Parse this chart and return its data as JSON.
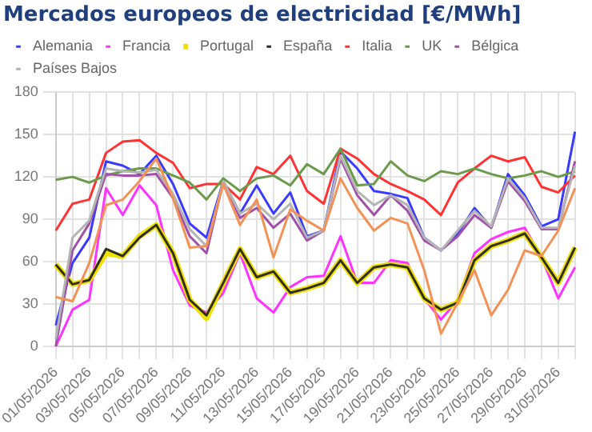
{
  "chart_data": {
    "type": "line",
    "title": "Mercados europeos de electricidad [€/MWh]",
    "categories": [
      "01/05/2026",
      null,
      "03/05/2026",
      null,
      "05/05/2026",
      null,
      "07/05/2026",
      null,
      "09/05/2026",
      null,
      "11/05/2026",
      null,
      "13/05/2026",
      null,
      "15/05/2026",
      null,
      "17/05/2026",
      null,
      "19/05/2026",
      null,
      "21/05/2026",
      null,
      "23/05/2026",
      null,
      "25/05/2026",
      null,
      "27/05/2026",
      null,
      "29/05/2026",
      null,
      "31/05/2026",
      null
    ],
    "series": [
      {
        "name": "Alemania",
        "color": "#3a3aff",
        "values": [
          15,
          59,
          77,
          131,
          128,
          122,
          135,
          115,
          87,
          77,
          117,
          94,
          114,
          94,
          109,
          78,
          82,
          138,
          126,
          110,
          108,
          105,
          77,
          68,
          80,
          98,
          84,
          122,
          107,
          85,
          90,
          152
        ]
      },
      {
        "name": "Francia",
        "color": "#ff33ff",
        "values": [
          0,
          26,
          33,
          112,
          93,
          114,
          100,
          54,
          29,
          24,
          38,
          66,
          34,
          24,
          42,
          49,
          50,
          78,
          45,
          45,
          61,
          59,
          34,
          19,
          33,
          66,
          76,
          81,
          84,
          63,
          34,
          56
        ]
      },
      {
        "name": "Portugal",
        "color": "#f0e000",
        "values": [
          58,
          44,
          47,
          66,
          64,
          78,
          86,
          66,
          33,
          20,
          45,
          69,
          49,
          53,
          38,
          41,
          45,
          61,
          45,
          56,
          58,
          56,
          34,
          26,
          31,
          61,
          71,
          75,
          80,
          63,
          45,
          70
        ]
      },
      {
        "name": "España",
        "color": "#2e2e22",
        "values": [
          58,
          44,
          47,
          69,
          64,
          77,
          86,
          66,
          33,
          22,
          45,
          69,
          49,
          53,
          38,
          41,
          45,
          61,
          45,
          56,
          58,
          56,
          34,
          26,
          31,
          61,
          71,
          75,
          80,
          63,
          45,
          70
        ]
      },
      {
        "name": "Italia",
        "color": "#ff3333",
        "values": [
          82,
          101,
          104,
          137,
          145,
          146,
          137,
          130,
          112,
          115,
          115,
          104,
          127,
          122,
          135,
          110,
          101,
          140,
          133,
          122,
          115,
          110,
          104,
          93,
          116,
          126,
          135,
          131,
          134,
          113,
          109,
          121
        ]
      },
      {
        "name": "UK",
        "color": "#6b9a4c",
        "values": [
          118,
          120,
          116,
          121,
          124,
          126,
          126,
          121,
          116,
          104,
          119,
          110,
          119,
          121,
          114,
          129,
          122,
          140,
          114,
          115,
          131,
          121,
          117,
          124,
          122,
          126,
          122,
          119,
          121,
          124,
          120,
          124
        ]
      },
      {
        "name": "Bélgica",
        "color": "#a050a8",
        "values": [
          0,
          68,
          87,
          122,
          121,
          121,
          122,
          105,
          78,
          66,
          117,
          91,
          98,
          84,
          94,
          75,
          82,
          133,
          107,
          93,
          107,
          96,
          75,
          68,
          78,
          93,
          84,
          117,
          103,
          83,
          83,
          131
        ]
      },
      {
        "name": "Países Bajos",
        "color": "#b4b4b4",
        "values": [
          5,
          77,
          89,
          126,
          124,
          123,
          125,
          108,
          83,
          71,
          117,
          94,
          101,
          90,
          101,
          77,
          82,
          135,
          110,
          100,
          107,
          100,
          77,
          68,
          82,
          96,
          85,
          119,
          105,
          84,
          84,
          128
        ]
      },
      {
        "color": "#f39256",
        "values": [
          35,
          32,
          59,
          100,
          104,
          117,
          133,
          105,
          70,
          71,
          115,
          86,
          104,
          63,
          97,
          89,
          82,
          119,
          98,
          82,
          91,
          87,
          54,
          9,
          31,
          54,
          22,
          40,
          68,
          64,
          82,
          112
        ]
      }
    ],
    "ylim": [
      0,
      180
    ],
    "yticks": [
      0,
      30,
      60,
      90,
      120,
      150,
      180
    ],
    "grid": true,
    "legend": "top",
    "marker": "none",
    "line_style": "solid"
  }
}
